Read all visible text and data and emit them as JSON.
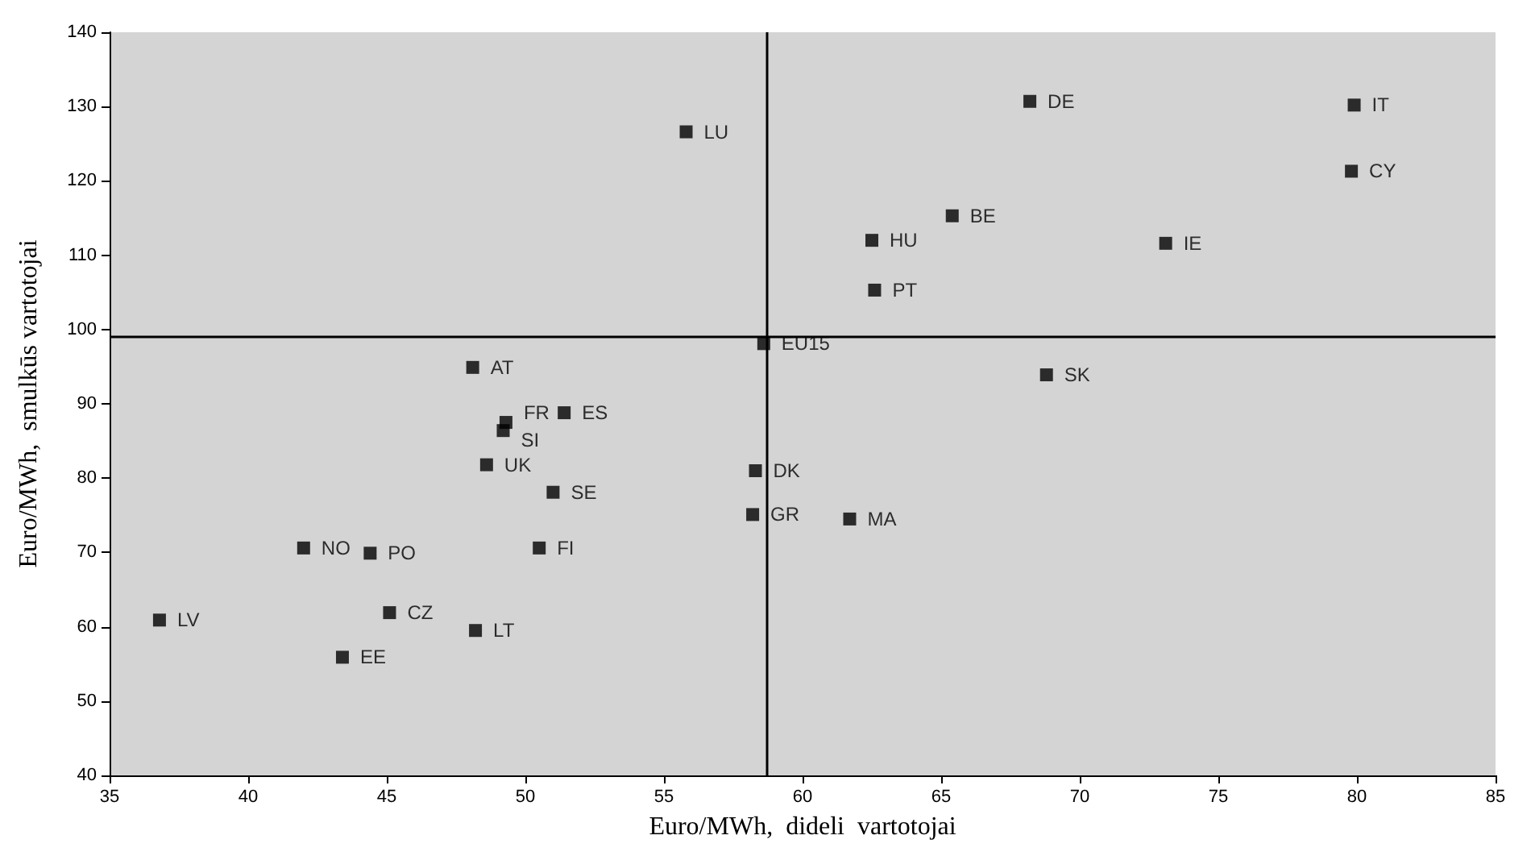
{
  "chart_data": {
    "type": "scatter",
    "xlabel": "Euro/MWh,  dideli  vartotojai",
    "ylabel": "Euro/MWh,  smulkūs vartotojai",
    "xlim": [
      35,
      85
    ],
    "xticks": [
      35,
      40,
      45,
      50,
      55,
      60,
      65,
      70,
      75,
      80,
      85
    ],
    "ylim": [
      40,
      140
    ],
    "yticks": [
      40,
      50,
      60,
      70,
      80,
      90,
      100,
      110,
      120,
      130,
      140
    ],
    "grid": false,
    "legend": false,
    "marker": "square",
    "ref_lines": [
      {
        "axis": "x",
        "value": 58.7,
        "color": "#000000"
      },
      {
        "axis": "y",
        "value": 99,
        "color": "#000000"
      }
    ],
    "series": [
      {
        "name": "LU",
        "color": "#000000",
        "x": [
          55.8
        ],
        "values": [
          126.6
        ]
      },
      {
        "name": "DE",
        "color": "#000000",
        "x": [
          68.2
        ],
        "values": [
          130.7
        ]
      },
      {
        "name": "IT",
        "color": "#000000",
        "x": [
          79.9
        ],
        "values": [
          130.2
        ]
      },
      {
        "name": "CY",
        "color": "#000000",
        "x": [
          79.8
        ],
        "values": [
          121.3
        ]
      },
      {
        "name": "BE",
        "color": "#000000",
        "x": [
          65.4
        ],
        "values": [
          115.3
        ]
      },
      {
        "name": "HU",
        "color": "#000000",
        "x": [
          62.5
        ],
        "values": [
          112.0
        ]
      },
      {
        "name": "IE",
        "color": "#000000",
        "x": [
          73.1
        ],
        "values": [
          111.6
        ]
      },
      {
        "name": "PT",
        "color": "#000000",
        "x": [
          62.6
        ],
        "values": [
          105.3
        ]
      },
      {
        "name": "EU15",
        "color": "#000000",
        "x": [
          58.6
        ],
        "values": [
          98.1
        ]
      },
      {
        "name": "AT",
        "color": "#000000",
        "x": [
          48.1
        ],
        "values": [
          94.9
        ]
      },
      {
        "name": "SK",
        "color": "#000000",
        "x": [
          68.8
        ],
        "values": [
          93.9
        ]
      },
      {
        "name": "ES",
        "color": "#000000",
        "x": [
          51.4
        ],
        "values": [
          88.8
        ]
      },
      {
        "name": "FR",
        "color": "#000000",
        "x": [
          49.3
        ],
        "values": [
          87.5
        ]
      },
      {
        "name": "SI",
        "color": "#000000",
        "x": [
          49.2
        ],
        "values": [
          86.4
        ]
      },
      {
        "name": "UK",
        "color": "#000000",
        "x": [
          48.6
        ],
        "values": [
          81.8
        ]
      },
      {
        "name": "DK",
        "color": "#000000",
        "x": [
          58.3
        ],
        "values": [
          81.0
        ]
      },
      {
        "name": "SE",
        "color": "#000000",
        "x": [
          51.0
        ],
        "values": [
          78.1
        ]
      },
      {
        "name": "GR",
        "color": "#000000",
        "x": [
          58.2
        ],
        "values": [
          75.1
        ]
      },
      {
        "name": "MA",
        "color": "#000000",
        "x": [
          61.7
        ],
        "values": [
          74.5
        ]
      },
      {
        "name": "NO",
        "color": "#000000",
        "x": [
          42.0
        ],
        "values": [
          70.6
        ]
      },
      {
        "name": "FI",
        "color": "#000000",
        "x": [
          50.5
        ],
        "values": [
          70.6
        ]
      },
      {
        "name": "PO",
        "color": "#000000",
        "x": [
          44.4
        ],
        "values": [
          69.9
        ]
      },
      {
        "name": "CZ",
        "color": "#000000",
        "x": [
          45.1
        ],
        "values": [
          61.9
        ]
      },
      {
        "name": "LV",
        "color": "#000000",
        "x": [
          36.8
        ],
        "values": [
          60.9
        ]
      },
      {
        "name": "LT",
        "color": "#000000",
        "x": [
          48.2
        ],
        "values": [
          59.5
        ]
      },
      {
        "name": "EE",
        "color": "#000000",
        "x": [
          43.4
        ],
        "values": [
          55.9
        ]
      }
    ]
  }
}
